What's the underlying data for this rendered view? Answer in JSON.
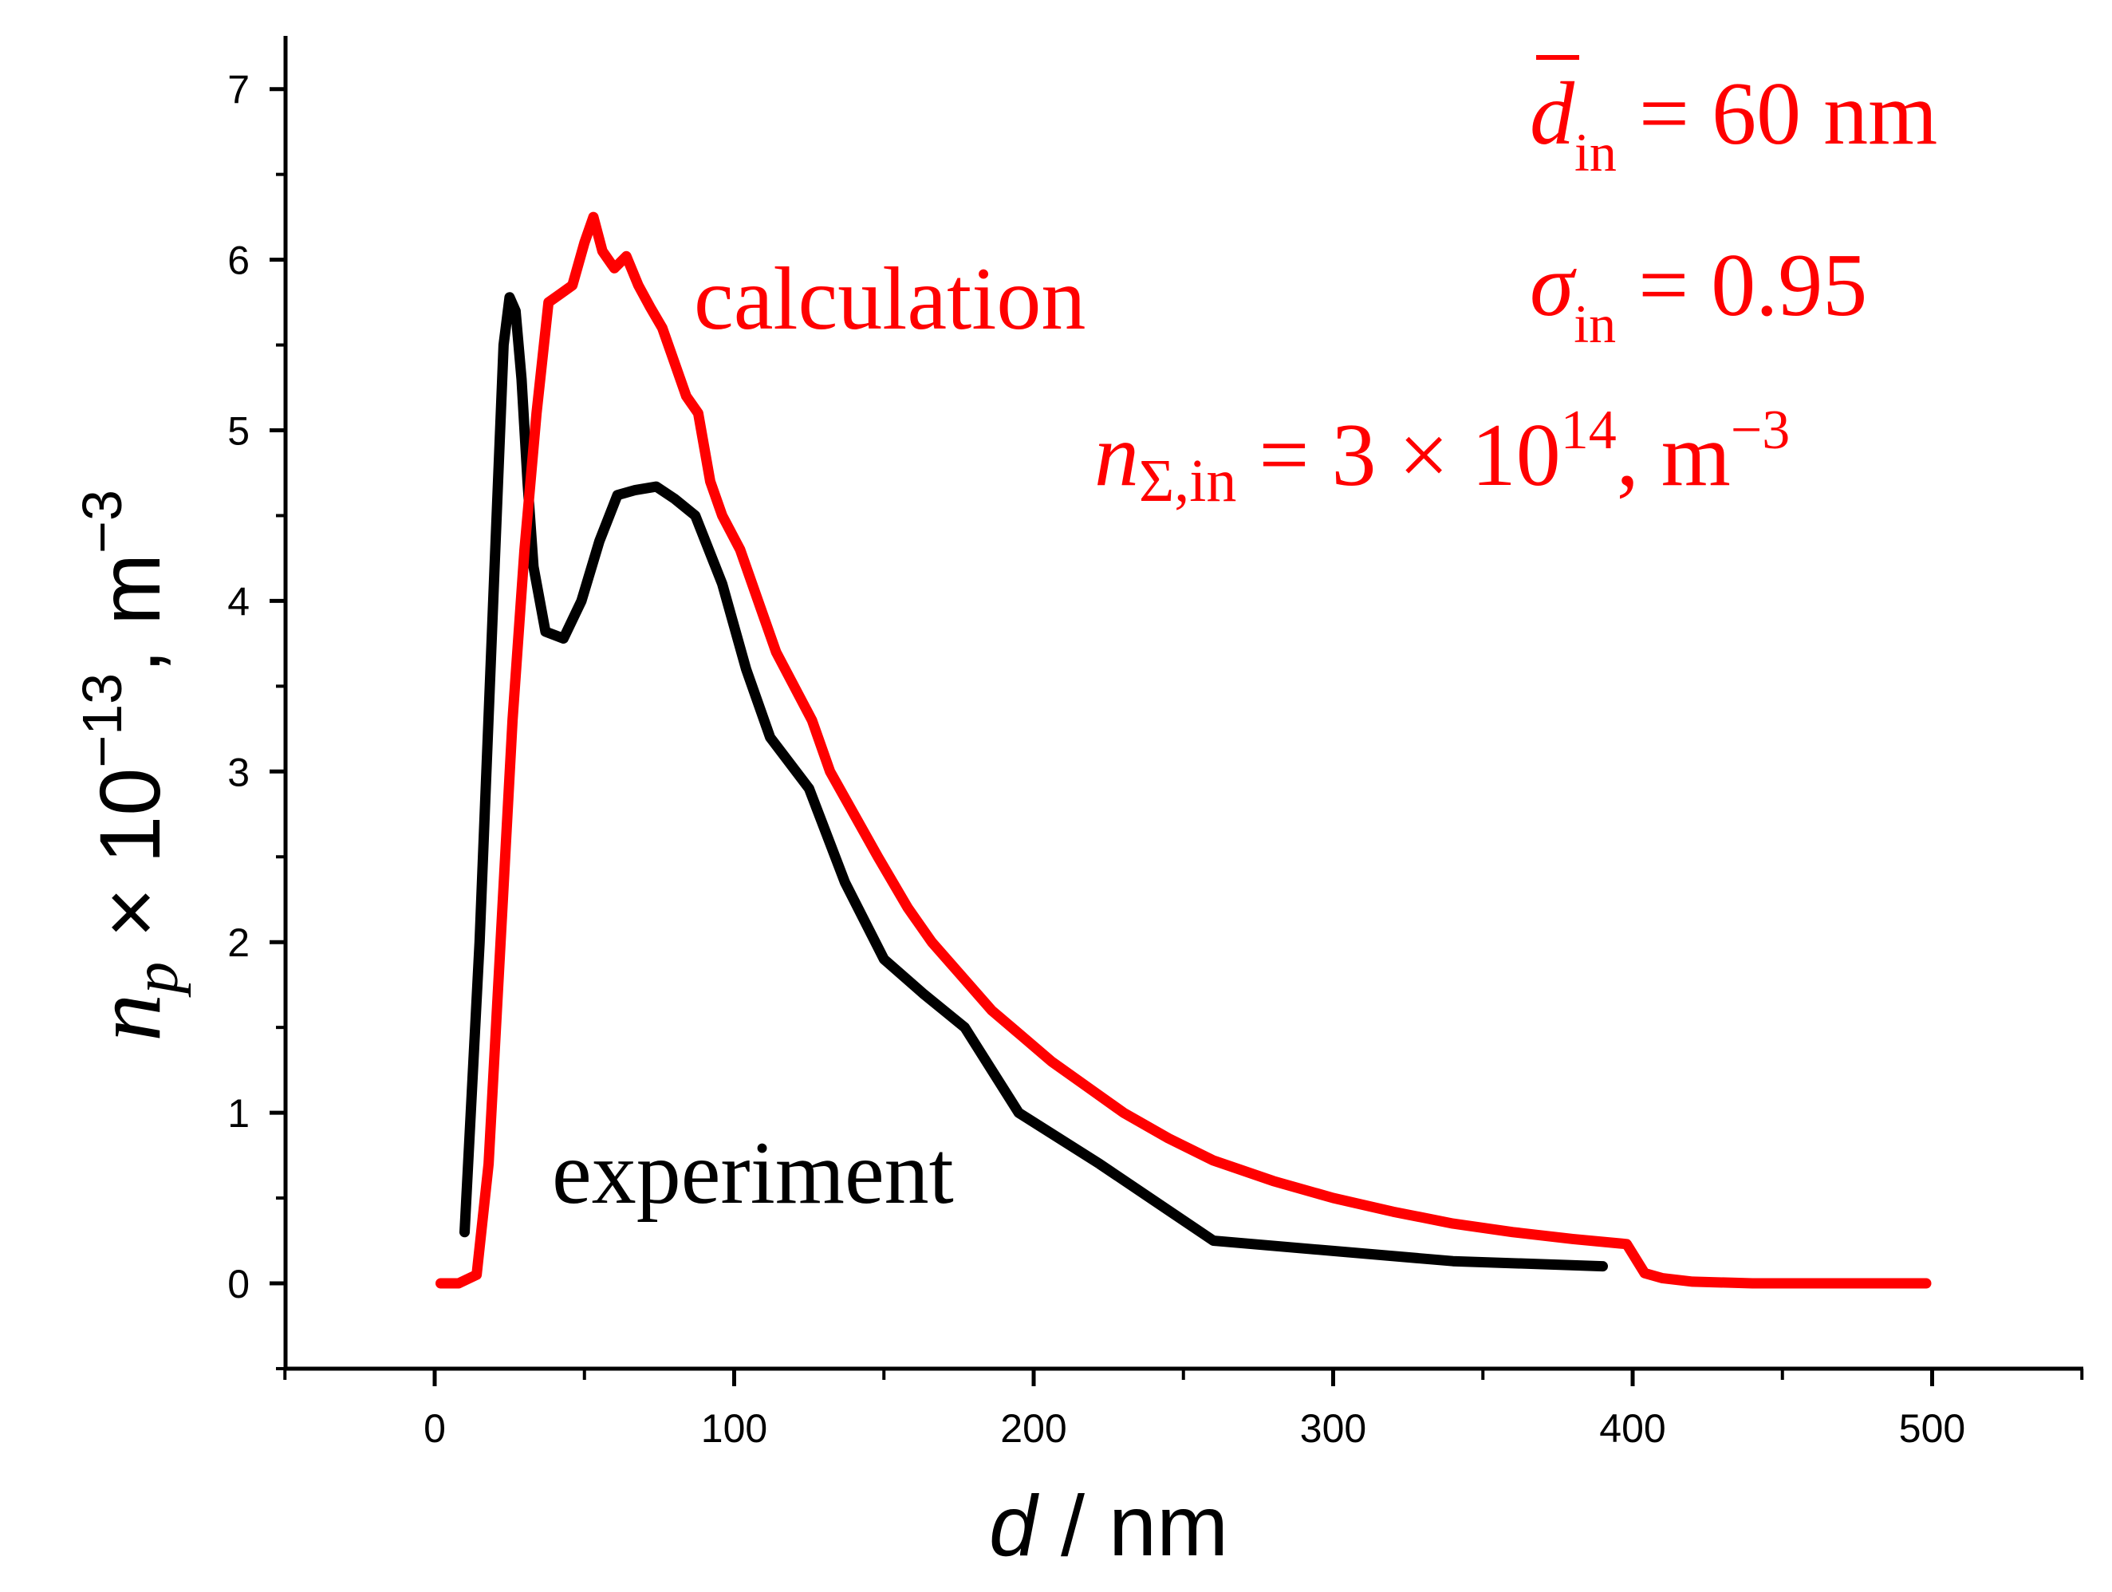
{
  "chart_data": {
    "type": "line",
    "title": "",
    "xlabel": {
      "symbol": "d",
      "unit_text": " / nm"
    },
    "ylabel": {
      "symbol": "n",
      "sub": "p",
      "times": " × 10",
      "exp": "−13",
      "unit": ", m",
      "unit_exp": "−3"
    },
    "xlim": [
      -50,
      550
    ],
    "ylim": [
      -0.5,
      7.3
    ],
    "x_ticks": [
      0,
      100,
      200,
      300,
      400,
      500
    ],
    "x_tick_labels": [
      "0",
      "100",
      "200",
      "300",
      "400",
      "500"
    ],
    "y_ticks": [
      0,
      1,
      2,
      3,
      4,
      5,
      6,
      7
    ],
    "y_tick_labels": [
      "0",
      "1",
      "2",
      "3",
      "4",
      "5",
      "6",
      "7"
    ],
    "grid": false,
    "series": [
      {
        "name": "experiment",
        "color": "#000000",
        "x": [
          10,
          15,
          20,
          23,
          25,
          27,
          29,
          31,
          33,
          37,
          43,
          49,
          55,
          61,
          67,
          74,
          80,
          87,
          96,
          104,
          112,
          125,
          137,
          150,
          163,
          177,
          195,
          222,
          260,
          300,
          340,
          390
        ],
        "y": [
          0.3,
          2.0,
          4.2,
          5.5,
          5.78,
          5.7,
          5.3,
          4.7,
          4.2,
          3.82,
          3.78,
          4.0,
          4.35,
          4.62,
          4.65,
          4.67,
          4.6,
          4.5,
          4.1,
          3.6,
          3.2,
          2.9,
          2.35,
          1.9,
          1.7,
          1.5,
          1.0,
          0.7,
          0.25,
          0.19,
          0.13,
          0.1
        ]
      },
      {
        "name": "calculation",
        "color": "#ff0000",
        "x": [
          2,
          8,
          14,
          18,
          22,
          26,
          30,
          34,
          38,
          42,
          46,
          50,
          53,
          56,
          60,
          64,
          68,
          72,
          76,
          80,
          84,
          88,
          92,
          96,
          102,
          108,
          114,
          120,
          126,
          132,
          140,
          148,
          158,
          166,
          176,
          186,
          196,
          206,
          218,
          230,
          245,
          260,
          280,
          300,
          320,
          340,
          360,
          380,
          398,
          404,
          410,
          420,
          440,
          470,
          498
        ],
        "y": [
          0,
          0,
          0.05,
          0.7,
          2.0,
          3.3,
          4.3,
          5.1,
          5.75,
          5.8,
          5.85,
          6.1,
          6.25,
          6.05,
          5.95,
          6.02,
          5.85,
          5.72,
          5.6,
          5.4,
          5.2,
          5.1,
          4.7,
          4.5,
          4.3,
          4.0,
          3.7,
          3.5,
          3.3,
          3.0,
          2.75,
          2.5,
          2.2,
          2.0,
          1.8,
          1.6,
          1.45,
          1.3,
          1.15,
          1.0,
          0.85,
          0.72,
          0.6,
          0.5,
          0.42,
          0.35,
          0.3,
          0.26,
          0.23,
          0.06,
          0.03,
          0.01,
          0,
          0,
          0
        ]
      }
    ],
    "annotations": {
      "experiment_label": "experiment",
      "calculation_label": "calculation",
      "d_mean": {
        "symbol": "d",
        "sub": "in",
        "rest": " = 60 nm"
      },
      "sigma": {
        "symbol": "σ",
        "sub": "in",
        "rest": " = 0.95"
      },
      "n_total": {
        "symbol": "n",
        "sub": "Σ,in",
        "rest": " = 3 × 10",
        "exp": "14",
        "unit": ", m",
        "unit_exp": "−3"
      }
    }
  }
}
